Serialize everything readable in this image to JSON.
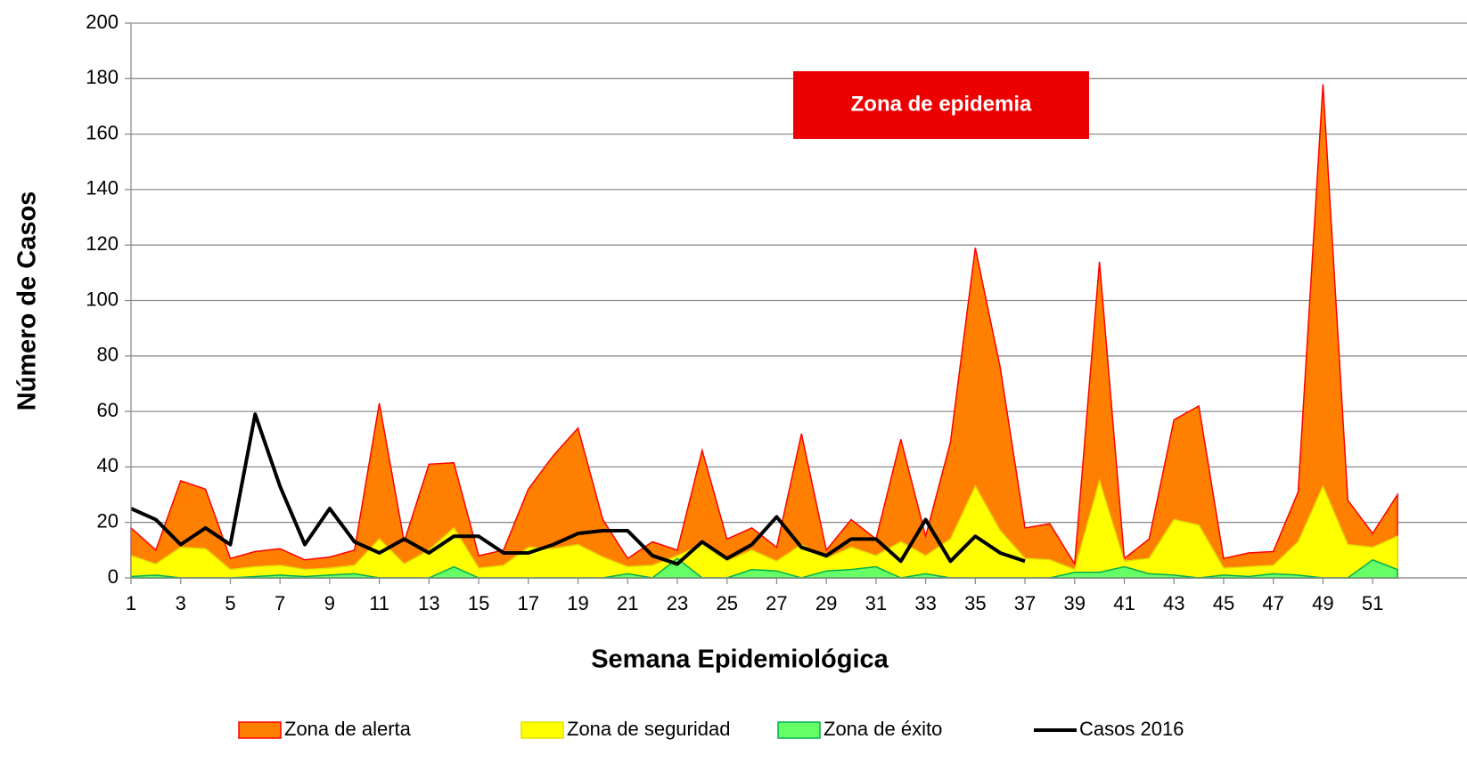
{
  "chart_data": {
    "type": "area",
    "x_label": "Semana Epidemiológica",
    "y_label": "Número de Casos",
    "annotation": "Zona de epidemia",
    "annotation_color": "#ee0000",
    "x": [
      1,
      2,
      3,
      4,
      5,
      6,
      7,
      8,
      9,
      10,
      11,
      12,
      13,
      14,
      15,
      16,
      17,
      18,
      19,
      20,
      21,
      22,
      23,
      24,
      25,
      26,
      27,
      28,
      29,
      30,
      31,
      32,
      33,
      34,
      35,
      36,
      37,
      38,
      39,
      40,
      41,
      42,
      43,
      44,
      45,
      46,
      47,
      48,
      49,
      50,
      51,
      52
    ],
    "xlim": [
      1,
      54.8
    ],
    "xticks": [
      1,
      3,
      5,
      7,
      9,
      11,
      13,
      15,
      17,
      19,
      21,
      23,
      25,
      27,
      29,
      31,
      33,
      35,
      37,
      39,
      41,
      43,
      45,
      47,
      49,
      51
    ],
    "ylim": [
      0,
      200
    ],
    "yticks": [
      0,
      20,
      40,
      60,
      80,
      100,
      120,
      140,
      160,
      180,
      200
    ],
    "grid": true,
    "series": [
      {
        "name": "Zona de alerta",
        "type": "area",
        "color": "#ff8000",
        "edge": "#ff0000",
        "values": [
          18,
          10,
          35,
          32,
          7,
          9.5,
          10.5,
          6.5,
          7.5,
          10,
          63,
          13,
          41,
          41.5,
          8,
          10,
          32,
          44,
          54,
          21,
          7,
          13,
          10,
          46,
          14,
          18,
          11,
          52,
          10,
          21,
          14,
          50,
          15,
          49,
          119,
          76,
          18,
          19.5,
          5,
          114,
          7,
          14,
          57,
          62,
          7,
          9,
          9.5,
          31,
          178,
          28,
          16,
          30
        ]
      },
      {
        "name": "Zona de seguridad",
        "type": "area",
        "color": "#ffff00",
        "edge": "#e0e000",
        "values": [
          8,
          5,
          11,
          10.5,
          3,
          4,
          4.5,
          3,
          3.5,
          4.5,
          14,
          5,
          10,
          18,
          3.5,
          4.5,
          11,
          10.5,
          12,
          7.5,
          4,
          4.5,
          8,
          12,
          6,
          10,
          6,
          12,
          7,
          11,
          8,
          13,
          8,
          14,
          33,
          17,
          7,
          6.5,
          3,
          35,
          6,
          7,
          21,
          19,
          3.5,
          4,
          4.5,
          13,
          33,
          12,
          11,
          15
        ]
      },
      {
        "name": "Zona de éxito",
        "type": "area",
        "color": "#66ff66",
        "edge": "#00b050",
        "values": [
          0.5,
          1,
          0,
          0,
          0,
          0.5,
          1,
          0.5,
          1,
          1.5,
          0,
          0,
          0,
          4,
          0,
          0,
          0,
          0,
          0,
          0,
          1.5,
          0,
          7,
          0,
          0,
          3,
          2.5,
          0,
          2.5,
          3,
          4,
          0,
          1.5,
          0,
          0,
          0,
          0,
          0,
          2,
          2,
          4,
          1.5,
          1,
          0,
          1,
          0.5,
          1.5,
          1,
          0,
          0,
          6.5,
          3
        ]
      },
      {
        "name": "Casos 2016",
        "type": "line",
        "color": "#000000",
        "values": [
          25,
          21,
          12,
          18,
          12,
          59,
          33,
          12,
          25,
          13,
          9,
          14,
          9,
          15,
          15,
          9,
          9,
          12,
          16,
          17,
          17,
          8,
          5,
          13,
          7,
          12,
          22,
          11,
          8,
          14,
          14,
          6,
          21,
          6,
          15,
          9,
          6,
          null,
          null,
          null,
          null,
          null,
          null,
          null,
          null,
          null,
          null,
          null,
          null,
          null,
          null,
          null
        ]
      }
    ]
  }
}
